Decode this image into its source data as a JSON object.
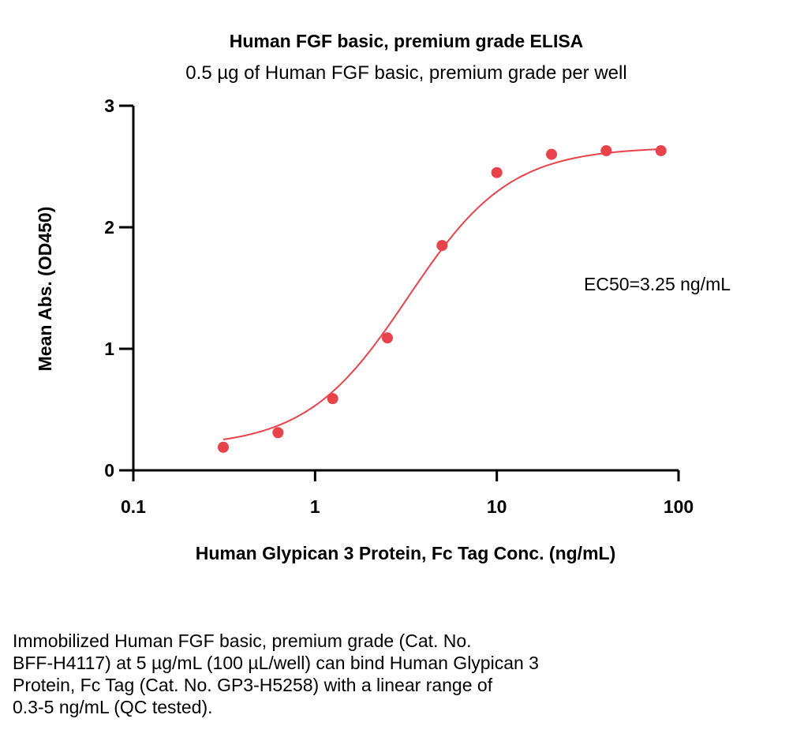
{
  "chart_data": {
    "type": "scatter",
    "title": "Human FGF basic, premium grade ELISA",
    "subtitle": "0.5 µg of Human FGF basic, premium grade per well",
    "xlabel": "Human Glypican 3 Protein, Fc Tag Conc. (ng/mL)",
    "ylabel": "Mean Abs. (OD450)",
    "x_scale": "log",
    "xlim": [
      0.1,
      100
    ],
    "ylim": [
      0,
      3
    ],
    "x_ticks": [
      0.1,
      1,
      10,
      100
    ],
    "x_tick_labels": [
      "0.1",
      "1",
      "10",
      "100"
    ],
    "y_ticks": [
      0,
      1,
      2,
      3
    ],
    "y_tick_labels": [
      "0",
      "1",
      "2",
      "3"
    ],
    "grid": false,
    "series": [
      {
        "color": "#e8424a",
        "x": [
          0.3125,
          0.625,
          1.25,
          2.5,
          5,
          10,
          20,
          40,
          80
        ],
        "y": [
          0.19,
          0.31,
          0.59,
          1.09,
          1.85,
          2.45,
          2.6,
          2.63,
          2.63
        ],
        "fit": {
          "model": "4PL",
          "bottom": 0.19,
          "top": 2.66,
          "ec50": 3.25,
          "hill": 1.55,
          "x_range": [
            0.3125,
            80
          ]
        }
      }
    ],
    "annotations": [
      {
        "text": "EC50=3.25 ng/mL"
      }
    ]
  },
  "caption": "Immobilized Human FGF basic, premium grade (Cat. No.\nBFF-H4117) at 5 µg/mL (100 µL/well) can bind Human Glypican 3\nProtein, Fc Tag (Cat. No. GP3-H5258) with a linear range of\n0.3-5 ng/mL (QC tested)."
}
